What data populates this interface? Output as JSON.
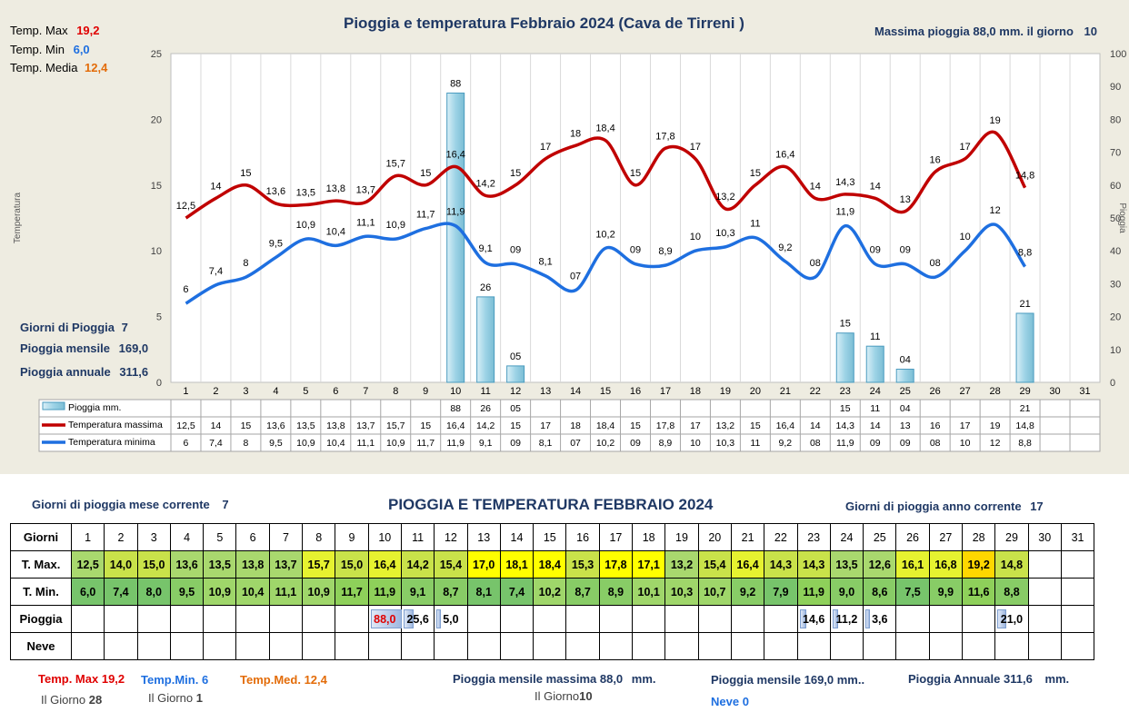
{
  "chart_data": {
    "type": "bar+line",
    "title": "Pioggia e temperatura Febbraio 2024 (Cava de Tirreni )",
    "ylabel_left": "Temperatura",
    "ylabel_right": "Pioggia",
    "ylim_left": [
      0,
      25
    ],
    "ylim_right": [
      0,
      100
    ],
    "left_ticks": [
      "0",
      "5",
      "10",
      "15",
      "20",
      "25"
    ],
    "right_ticks": [
      "0",
      "10",
      "20",
      "30",
      "40",
      "50",
      "60",
      "70",
      "80",
      "90",
      "100"
    ],
    "days": [
      "1",
      "2",
      "3",
      "4",
      "5",
      "6",
      "7",
      "8",
      "9",
      "10",
      "11",
      "12",
      "13",
      "14",
      "15",
      "16",
      "17",
      "18",
      "19",
      "20",
      "21",
      "22",
      "23",
      "24",
      "25",
      "26",
      "27",
      "28",
      "29",
      "30",
      "31"
    ],
    "series": [
      {
        "name": "Pioggia mm.",
        "type": "bar",
        "axis": "right",
        "color": "#9dd3e6",
        "values": [
          null,
          null,
          null,
          null,
          null,
          null,
          null,
          null,
          null,
          88,
          26,
          5,
          null,
          null,
          null,
          null,
          null,
          null,
          null,
          null,
          null,
          null,
          15,
          11,
          4,
          null,
          null,
          null,
          21,
          null,
          null
        ],
        "labels": [
          "",
          "",
          "",
          "",
          "",
          "",
          "",
          "",
          "",
          "88",
          "26",
          "05",
          "",
          "",
          "",
          "",
          "",
          "",
          "",
          "",
          "",
          "",
          "15",
          "11",
          "04",
          "",
          "",
          "",
          "21",
          "",
          ""
        ]
      },
      {
        "name": "Temperatura massima",
        "type": "line",
        "axis": "left",
        "color": "#c00000",
        "values": [
          12.5,
          14,
          15,
          13.6,
          13.5,
          13.8,
          13.7,
          15.7,
          15,
          16.4,
          14.2,
          15,
          17,
          18,
          18.4,
          15,
          17.8,
          17,
          13.2,
          15,
          16.4,
          14,
          14.3,
          14,
          13,
          16,
          17,
          19,
          14.8,
          null,
          null
        ],
        "labels": [
          "12,5",
          "14",
          "15",
          "13,6",
          "13,5",
          "13,8",
          "13,7",
          "15,7",
          "15",
          "16,4",
          "14,2",
          "15",
          "17",
          "18",
          "18,4",
          "15",
          "17,8",
          "17",
          "13,2",
          "15",
          "16,4",
          "14",
          "14,3",
          "14",
          "13",
          "16",
          "17",
          "19",
          "14,8",
          "",
          ""
        ]
      },
      {
        "name": "Temperatura minima",
        "type": "line",
        "axis": "left",
        "color": "#1e6fe0",
        "values": [
          6,
          7.4,
          8,
          9.5,
          10.9,
          10.4,
          11.1,
          10.9,
          11.7,
          11.9,
          9.1,
          9,
          8.1,
          7,
          10.2,
          9,
          8.9,
          10,
          10.3,
          11,
          9.2,
          8,
          11.9,
          9,
          9,
          8,
          10,
          12,
          8.8,
          null,
          null
        ],
        "labels": [
          "6",
          "7,4",
          "8",
          "9,5",
          "10,9",
          "10,4",
          "11,1",
          "10,9",
          "11,7",
          "11,9",
          "9,1",
          "09",
          "8,1",
          "07",
          "10,2",
          "09",
          "8,9",
          "10",
          "10,3",
          "11",
          "9,2",
          "08",
          "11,9",
          "09",
          "09",
          "08",
          "10",
          "12",
          "8,8",
          "",
          ""
        ]
      }
    ]
  },
  "top_left": {
    "max_label": "Temp. Max",
    "max_value": "19,2",
    "min_label": "Temp. Min",
    "min_value": "6,0",
    "avg_label": "Temp. Media",
    "avg_value": "12,4"
  },
  "top_right": {
    "text": "Massima pioggia  88,0 mm. il giorno",
    "day": "10"
  },
  "side_stats": {
    "rain_days_label": "Giorni di Pioggia",
    "rain_days": "7",
    "monthly_label": "Pioggia mensile",
    "monthly": "169,0",
    "annual_label": "Pioggia annuale",
    "annual": "311,6"
  },
  "table_section": {
    "title": "PIOGGIA E TEMPERATURA FEBBRAIO 2024",
    "left_label": "Giorni di pioggia",
    "left_label2": "mese corrente",
    "left_value": "7",
    "right_label": "Giorni di pioggia anno corrente",
    "right_value": "17",
    "row_headers": [
      "Giorni",
      "T. Max.",
      "T. Min.",
      "Pioggia",
      "Neve"
    ],
    "tmax": [
      "12,5",
      "14,0",
      "15,0",
      "13,6",
      "13,5",
      "13,8",
      "13,7",
      "15,7",
      "15,0",
      "16,4",
      "14,2",
      "15,4",
      "17,0",
      "18,1",
      "18,4",
      "15,3",
      "17,8",
      "17,1",
      "13,2",
      "15,4",
      "16,4",
      "14,3",
      "14,3",
      "13,5",
      "12,6",
      "16,1",
      "16,8",
      "19,2",
      "14,8",
      "",
      ""
    ],
    "tmin": [
      "6,0",
      "7,4",
      "8,0",
      "9,5",
      "10,9",
      "10,4",
      "11,1",
      "10,9",
      "11,7",
      "11,9",
      "9,1",
      "8,7",
      "8,1",
      "7,4",
      "10,2",
      "8,7",
      "8,9",
      "10,1",
      "10,3",
      "10,7",
      "9,2",
      "7,9",
      "11,9",
      "9,0",
      "8,6",
      "7,5",
      "9,9",
      "11,6",
      "8,8",
      "",
      ""
    ],
    "rain": [
      "",
      "",
      "",
      "",
      "",
      "",
      "",
      "",
      "",
      "88,0",
      "25,6",
      "5,0",
      "",
      "",
      "",
      "",
      "",
      "",
      "",
      "",
      "",
      "",
      "14,6",
      "11,2",
      "3,6",
      "",
      "",
      "",
      "21,0",
      "",
      ""
    ],
    "rain_frac": [
      0,
      0,
      0,
      0,
      0,
      0,
      0,
      0,
      0,
      1.0,
      0.29,
      0.06,
      0,
      0,
      0,
      0,
      0,
      0,
      0,
      0,
      0,
      0,
      0.17,
      0.13,
      0.04,
      0,
      0,
      0,
      0.24,
      0,
      0
    ]
  },
  "footer": {
    "tmax_label": "Temp. Max",
    "tmax_value": "19,2",
    "tmax_day_label": "Il Giorno",
    "tmax_day": "28",
    "tmin_label": "Temp.Min.",
    "tmin_value": "6",
    "tmin_day_label": "Il Giorno",
    "tmin_day": "1",
    "tmed_label": "Temp.Med.",
    "tmed_value": "12,4",
    "rain_max_label": "Pioggia mensile massima",
    "rain_max_value": "88,0",
    "rain_max_unit": "mm.",
    "rain_max_day_label": "Il Giorno",
    "rain_max_day": "10",
    "monthly_label": "Pioggia mensile",
    "monthly_value": "169,0 mm..",
    "snow_label": "Neve",
    "snow_value": "0",
    "annual_label": "Pioggia Annuale",
    "annual_value": "311,6",
    "annual_unit": "mm."
  },
  "colors": {
    "max": "#c00000",
    "min": "#1e6fe0",
    "avg": "#e36c09",
    "bar": "#9dd3e6",
    "navy": "#1f3864"
  }
}
